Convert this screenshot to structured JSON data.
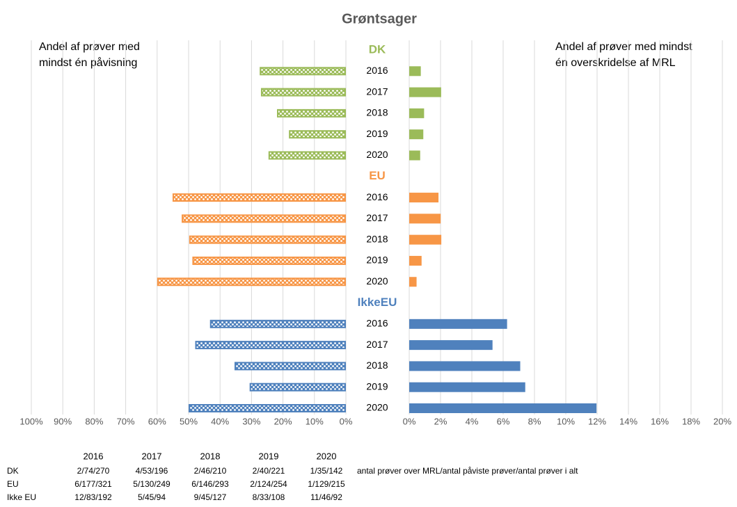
{
  "chart_data": {
    "type": "butterfly",
    "title": "Grøntsager",
    "left_label": [
      "Andel af prøver med",
      "mindst én påvisning"
    ],
    "right_label": [
      "Andel af prøver med mindst",
      "én overskridelse af MRL"
    ],
    "grid": true,
    "left_axis": {
      "xlim": [
        0,
        100
      ],
      "reversed": true,
      "xticks": [
        {
          "value": 0,
          "label": "0%"
        },
        {
          "value": 10,
          "label": "10%"
        },
        {
          "value": 20,
          "label": "20%"
        },
        {
          "value": 30,
          "label": "30%"
        },
        {
          "value": 40,
          "label": "40%"
        },
        {
          "value": 50,
          "label": "50%"
        },
        {
          "value": 60,
          "label": "60%"
        },
        {
          "value": 70,
          "label": "70%"
        },
        {
          "value": 80,
          "label": "80%"
        },
        {
          "value": 90,
          "label": "90%"
        },
        {
          "value": 100,
          "label": "100%"
        }
      ]
    },
    "right_axis": {
      "xlim": [
        0,
        20
      ],
      "xticks": [
        {
          "value": 0,
          "label": "0%"
        },
        {
          "value": 2,
          "label": "2%"
        },
        {
          "value": 4,
          "label": "4%"
        },
        {
          "value": 6,
          "label": "6%"
        },
        {
          "value": 8,
          "label": "8%"
        },
        {
          "value": 10,
          "label": "10%"
        },
        {
          "value": 12,
          "label": "12%"
        },
        {
          "value": 14,
          "label": "14%"
        },
        {
          "value": 16,
          "label": "16%"
        },
        {
          "value": 18,
          "label": "18%"
        },
        {
          "value": 20,
          "label": "20%"
        }
      ]
    },
    "groups": [
      {
        "name": "DK",
        "color": "#9bbb59",
        "categories": [
          "2016",
          "2017",
          "2018",
          "2019",
          "2020"
        ],
        "detection": [
          27.4,
          27.0,
          21.9,
          18.1,
          24.6
        ],
        "exceedance": [
          0.74,
          2.04,
          0.95,
          0.9,
          0.7
        ]
      },
      {
        "name": "EU",
        "color": "#f79646",
        "categories": [
          "2016",
          "2017",
          "2018",
          "2019",
          "2020"
        ],
        "detection": [
          55.1,
          52.2,
          49.8,
          48.8,
          60.0
        ],
        "exceedance": [
          1.87,
          2.01,
          2.05,
          0.79,
          0.47
        ]
      },
      {
        "name": "IkkeEU",
        "color": "#4f81bd",
        "categories": [
          "2016",
          "2017",
          "2018",
          "2019",
          "2020"
        ],
        "detection": [
          43.2,
          47.9,
          35.4,
          30.6,
          50.0
        ],
        "exceedance": [
          6.25,
          5.32,
          7.09,
          7.41,
          11.96
        ]
      }
    ]
  },
  "table": {
    "columns": [
      "2016",
      "2017",
      "2018",
      "2019",
      "2020"
    ],
    "rows": [
      {
        "label": "DK",
        "cells": [
          "2/74/270",
          "4/53/196",
          "2/46/210",
          "2/40/221",
          "1/35/142"
        ]
      },
      {
        "label": "EU",
        "cells": [
          "6/177/321",
          "5/130/249",
          "6/146/293",
          "2/124/254",
          "1/129/215"
        ]
      },
      {
        "label": "Ikke EU",
        "cells": [
          "12/83/192",
          "5/45/94",
          "9/45/127",
          "8/33/108",
          "11/46/92"
        ]
      }
    ],
    "note": "antal prøver over MRL/antal påviste prøver/antal prøver i alt"
  }
}
